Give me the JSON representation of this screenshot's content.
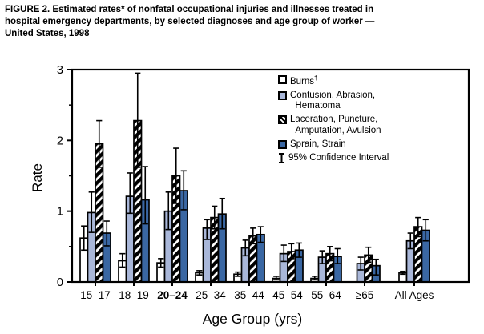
{
  "figure": {
    "title": "FIGURE 2. Estimated rates* of nonfatal occupational injuries and illnesses treated in\nhospital emergency departments, by selected diagnoses and age group of worker —\nUnited States, 1998"
  },
  "legend": {
    "items": [
      {
        "id": "burns",
        "label": "Burns",
        "sup": "†",
        "swatch": "open"
      },
      {
        "id": "contusion",
        "label": "Contusion, Abrasion,\n  Hematoma",
        "swatch": "light"
      },
      {
        "id": "laceration",
        "label": "Laceration, Puncture,\n  Amputation, Avulsion",
        "swatch": "hatch"
      },
      {
        "id": "sprain",
        "label": "Sprain, Strain",
        "swatch": "dark"
      },
      {
        "id": "ci",
        "label": "95% Confidence Interval",
        "swatch": "ci"
      }
    ]
  },
  "chart_data": {
    "type": "bar",
    "title": "FIGURE 2. Estimated rates* of nonfatal occupational injuries and illnesses treated in hospital emergency departments, by selected diagnoses and age group of worker — United States, 1998",
    "xlabel": "Age Group (yrs)",
    "ylabel": "Rate",
    "ylim": [
      0,
      3
    ],
    "yticks": [
      0,
      1,
      2,
      3
    ],
    "yminorticks": [
      0.5,
      1.5,
      2.5
    ],
    "grid": false,
    "legend_position": "top-right-inside",
    "frame": true,
    "categories": [
      "15–17",
      "18–19",
      "20–24",
      "25–34",
      "35–44",
      "45–54",
      "55–64",
      "≥65",
      "All Ages"
    ],
    "bold_category": "20–24",
    "error_bars_label": "95% Confidence Interval",
    "colors": {
      "open": "#ffffff",
      "light": "#a9b7d9",
      "dark": "#3a67a3",
      "outline": "#000000"
    },
    "series": [
      {
        "name": "Burns",
        "style": "open",
        "values": [
          0.62,
          0.3,
          0.27,
          0.13,
          0.11,
          0.05,
          0.05,
          null,
          0.13
        ],
        "ci_low": [
          0.45,
          0.21,
          0.21,
          0.1,
          0.08,
          0.03,
          0.03,
          null,
          0.11
        ],
        "ci_high": [
          0.79,
          0.4,
          0.33,
          0.16,
          0.14,
          0.08,
          0.08,
          null,
          0.15
        ]
      },
      {
        "name": "Contusion, Abrasion, Hematoma",
        "style": "light",
        "values": [
          0.98,
          1.21,
          1.0,
          0.76,
          0.48,
          0.4,
          0.35,
          0.26,
          0.58
        ],
        "ci_low": [
          0.7,
          0.97,
          0.74,
          0.6,
          0.37,
          0.29,
          0.26,
          0.17,
          0.47
        ],
        "ci_high": [
          1.27,
          1.54,
          1.27,
          0.88,
          0.59,
          0.52,
          0.44,
          0.35,
          0.69
        ]
      },
      {
        "name": "Laceration, Puncture, Amputation, Avulsion",
        "style": "hatch",
        "values": [
          1.95,
          2.28,
          1.5,
          0.91,
          0.65,
          0.43,
          0.4,
          0.38,
          0.78
        ],
        "ci_low": [
          1.62,
          1.62,
          1.11,
          0.75,
          0.54,
          0.33,
          0.3,
          0.28,
          0.64
        ],
        "ci_high": [
          2.28,
          2.95,
          1.89,
          1.07,
          0.76,
          0.54,
          0.5,
          0.49,
          0.91
        ]
      },
      {
        "name": "Sprain, Strain",
        "style": "dark",
        "values": [
          0.69,
          1.16,
          1.29,
          0.96,
          0.67,
          0.45,
          0.36,
          0.23,
          0.73
        ],
        "ci_low": [
          0.51,
          0.82,
          1.02,
          0.75,
          0.56,
          0.35,
          0.26,
          0.1,
          0.58
        ],
        "ci_high": [
          0.86,
          1.63,
          1.57,
          1.18,
          0.78,
          0.55,
          0.47,
          0.32,
          0.88
        ]
      }
    ]
  }
}
